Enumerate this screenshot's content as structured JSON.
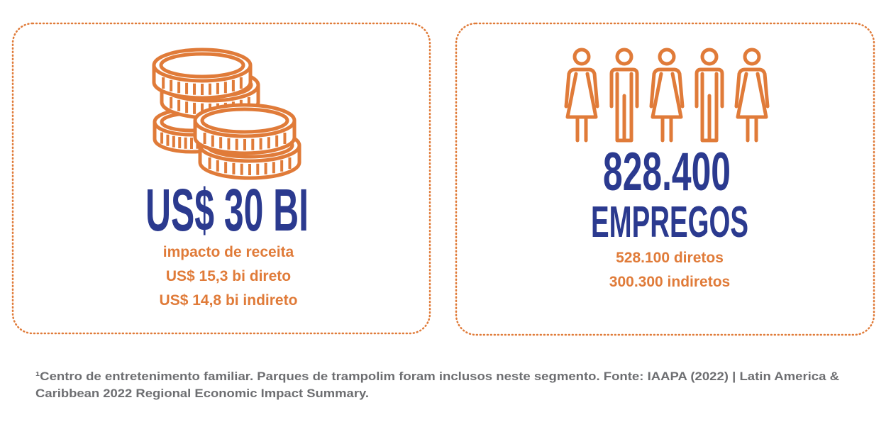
{
  "cards": [
    {
      "headline": "US$ 30 BI",
      "lines": [
        "impacto de receita",
        "US$ 15,3 bi direto",
        "US$ 14,8 bi indireto"
      ]
    },
    {
      "headline": "828.400",
      "subheadline": "EMPREGOS",
      "lines": [
        "528.100 diretos",
        "300.300 indiretos"
      ]
    }
  ],
  "footnote": [
    "¹Centro de entretenimento familiar. Parques de trampolim foram inclusos neste segmento. Fonte: IAAPA (2022) | Latin America &",
    "Caribbean 2022 Regional Economic Impact Summary."
  ]
}
